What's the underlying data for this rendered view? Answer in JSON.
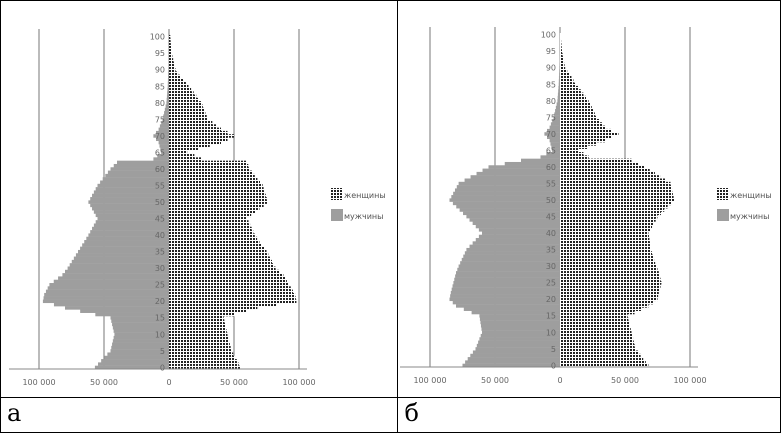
{
  "panels": [
    {
      "label": "а"
    },
    {
      "label": "б"
    }
  ],
  "chart_data": [
    {
      "type": "bar",
      "title": "",
      "orientation": "horizontal-population-pyramid",
      "ylabel": "",
      "xlabel": "",
      "x_tick_labels": [
        "100 000",
        "50 000",
        "0",
        "50 000",
        "100 000"
      ],
      "x_ticks": [
        -100000,
        -50000,
        0,
        50000,
        100000
      ],
      "y_tick_labels": [
        "0",
        "5",
        "10",
        "15",
        "20",
        "25",
        "30",
        "35",
        "40",
        "45",
        "50",
        "55",
        "60",
        "65",
        "70",
        "75",
        "80",
        "85",
        "90",
        "95",
        "100"
      ],
      "xlim": [
        -100000,
        100000
      ],
      "ylim": [
        0,
        100
      ],
      "legend": {
        "position": "right",
        "entries": [
          "женщины",
          "мужчины"
        ]
      },
      "colors": {
        "женщины": "#333333",
        "мужчины": "#9e9e9e"
      },
      "series": [
        {
          "name": "мужчины",
          "side": "left",
          "ages": [
            0,
            5,
            10,
            15,
            18,
            20,
            22,
            25,
            28,
            30,
            35,
            40,
            45,
            50,
            55,
            60,
            62,
            63,
            65,
            68,
            70,
            72,
            75,
            80,
            85,
            90,
            95,
            100
          ],
          "values": [
            57000,
            45000,
            42000,
            45000,
            80000,
            97000,
            96000,
            92000,
            82000,
            78000,
            70000,
            62000,
            55000,
            62000,
            55000,
            45000,
            40000,
            12000,
            6000,
            8000,
            12000,
            8000,
            5000,
            2000,
            1000,
            500,
            200,
            200
          ]
        },
        {
          "name": "женщины",
          "side": "right",
          "ages": [
            0,
            5,
            10,
            15,
            18,
            20,
            22,
            25,
            28,
            30,
            35,
            40,
            45,
            50,
            55,
            60,
            62,
            63,
            65,
            68,
            70,
            72,
            75,
            80,
            85,
            90,
            95,
            100
          ],
          "values": [
            55000,
            48000,
            45000,
            42000,
            68000,
            98000,
            97000,
            92000,
            88000,
            82000,
            75000,
            66000,
            60000,
            76000,
            72000,
            62000,
            60000,
            25000,
            14000,
            40000,
            50000,
            40000,
            30000,
            25000,
            15000,
            5000,
            2000,
            1000
          ]
        }
      ]
    },
    {
      "type": "bar",
      "title": "",
      "orientation": "horizontal-population-pyramid",
      "ylabel": "",
      "xlabel": "",
      "x_tick_labels": [
        "100 000",
        "50 000",
        "0",
        "50 000",
        "100 000"
      ],
      "x_ticks": [
        -100000,
        -50000,
        0,
        50000,
        100000
      ],
      "y_tick_labels": [
        "0",
        "5",
        "10",
        "15",
        "20",
        "25",
        "30",
        "35",
        "40",
        "45",
        "50",
        "55",
        "60",
        "65",
        "70",
        "75",
        "80",
        "85",
        "90",
        "95",
        "100"
      ],
      "xlim": [
        -100000,
        100000
      ],
      "ylim": [
        0,
        100
      ],
      "legend": {
        "position": "right",
        "entries": [
          "женщины",
          "мужчины"
        ]
      },
      "colors": {
        "женщины": "#333333",
        "мужчины": "#9e9e9e"
      },
      "series": [
        {
          "name": "мужчины",
          "side": "left",
          "ages": [
            0,
            5,
            10,
            15,
            18,
            20,
            22,
            25,
            28,
            30,
            35,
            40,
            45,
            50,
            55,
            60,
            62,
            63,
            65,
            68,
            70,
            72,
            75,
            80,
            85,
            90,
            95,
            100
          ],
          "values": [
            75000,
            65000,
            60000,
            62000,
            80000,
            85000,
            84000,
            82000,
            80000,
            78000,
            72000,
            60000,
            72000,
            85000,
            78000,
            55000,
            30000,
            15000,
            6000,
            8000,
            12000,
            8000,
            5000,
            2000,
            1000,
            500,
            200,
            200
          ]
        },
        {
          "name": "женщины",
          "side": "right",
          "ages": [
            0,
            5,
            10,
            15,
            18,
            20,
            22,
            25,
            28,
            30,
            35,
            40,
            45,
            50,
            55,
            60,
            62,
            63,
            65,
            68,
            70,
            72,
            75,
            80,
            85,
            90,
            95,
            100
          ],
          "values": [
            68000,
            58000,
            55000,
            52000,
            68000,
            75000,
            76000,
            78000,
            76000,
            74000,
            70000,
            68000,
            75000,
            88000,
            85000,
            65000,
            55000,
            22000,
            14000,
            35000,
            45000,
            35000,
            28000,
            22000,
            12000,
            4000,
            1500,
            500
          ]
        }
      ]
    }
  ]
}
